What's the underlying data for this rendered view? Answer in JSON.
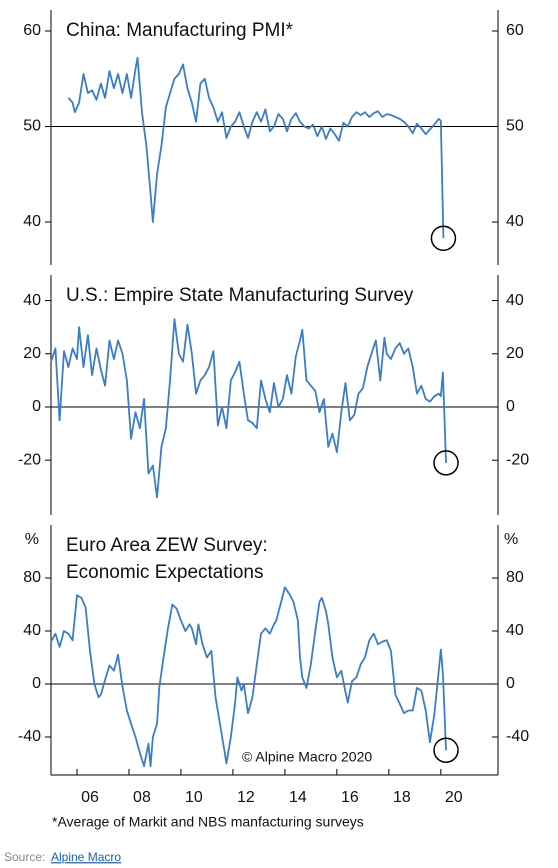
{
  "chart_data": [
    {
      "type": "line",
      "title": "China: Manufacturing PMI*",
      "color": "#3a7dc9",
      "xlim": [
        2005,
        2022.2
      ],
      "ylim": [
        35.5,
        62.2
      ],
      "yticks": [
        40,
        50,
        60
      ],
      "hline": 50,
      "x": [
        2005.67,
        2005.83,
        2005.92,
        2006.08,
        2006.25,
        2006.42,
        2006.58,
        2006.75,
        2006.92,
        2007.08,
        2007.25,
        2007.42,
        2007.58,
        2007.75,
        2007.92,
        2008.08,
        2008.25,
        2008.33,
        2008.5,
        2008.67,
        2008.83,
        2008.92,
        2009.08,
        2009.25,
        2009.42,
        2009.58,
        2009.75,
        2009.92,
        2010.08,
        2010.25,
        2010.42,
        2010.58,
        2010.75,
        2010.92,
        2011.08,
        2011.25,
        2011.42,
        2011.58,
        2011.75,
        2011.92,
        2012.08,
        2012.25,
        2012.42,
        2012.58,
        2012.75,
        2012.92,
        2013.08,
        2013.25,
        2013.42,
        2013.58,
        2013.75,
        2013.92,
        2014.08,
        2014.25,
        2014.42,
        2014.58,
        2014.75,
        2014.92,
        2015.08,
        2015.25,
        2015.42,
        2015.58,
        2015.75,
        2015.92,
        2016.08,
        2016.25,
        2016.42,
        2016.58,
        2016.75,
        2016.92,
        2017.08,
        2017.25,
        2017.42,
        2017.58,
        2017.75,
        2017.92,
        2018.08,
        2018.25,
        2018.42,
        2018.58,
        2018.75,
        2018.92,
        2019.08,
        2019.25,
        2019.42,
        2019.58,
        2019.75,
        2019.92,
        2020.0,
        2020.1
      ],
      "series": [
        {
          "values": [
            53,
            52.5,
            51.5,
            52.5,
            55.5,
            53.5,
            53.8,
            52.8,
            54.5,
            53.0,
            55.8,
            54.0,
            55.5,
            53.5,
            55.5,
            53.0,
            56.0,
            57.2,
            51.5,
            48.0,
            43.0,
            40.0,
            45,
            48,
            52,
            53.5,
            55,
            55.5,
            56.5,
            54,
            52.5,
            50.5,
            54.5,
            55,
            53,
            52,
            50.5,
            51.5,
            48.8,
            50,
            50.5,
            51.5,
            50,
            48.8,
            50.5,
            51.5,
            50.5,
            51.8,
            49.5,
            50,
            51.3,
            50.8,
            49.5,
            50.8,
            51.4,
            50.5,
            50.0,
            49.8,
            50.2,
            49,
            50,
            48.7,
            49.8,
            49.2,
            48.5,
            50.4,
            50,
            51,
            51.5,
            51.2,
            51.5,
            51,
            51.4,
            51.6,
            51,
            51.3,
            51.2,
            51,
            50.8,
            50.5,
            50.0,
            49.3,
            50.3,
            49.8,
            49.2,
            49.7,
            50.2,
            50.8,
            50.6,
            38.3
          ]
        }
      ]
    },
    {
      "type": "line",
      "title": "U.S.: Empire State Manufacturing Survey",
      "color": "#3a7dc9",
      "xlim": [
        2005,
        2022.2
      ],
      "ylim": [
        -40.6,
        49.6
      ],
      "yticks": [
        -20,
        0,
        20,
        40
      ],
      "hline": 0,
      "x": [
        2005.0,
        2005.17,
        2005.33,
        2005.5,
        2005.67,
        2005.83,
        2006.0,
        2006.08,
        2006.25,
        2006.42,
        2006.58,
        2006.75,
        2006.92,
        2007.08,
        2007.25,
        2007.42,
        2007.58,
        2007.75,
        2007.92,
        2008.08,
        2008.25,
        2008.42,
        2008.58,
        2008.75,
        2008.92,
        2009.08,
        2009.25,
        2009.42,
        2009.58,
        2009.75,
        2009.92,
        2010.08,
        2010.25,
        2010.42,
        2010.58,
        2010.75,
        2010.92,
        2011.08,
        2011.25,
        2011.42,
        2011.58,
        2011.75,
        2011.92,
        2012.08,
        2012.25,
        2012.42,
        2012.58,
        2012.75,
        2012.92,
        2013.08,
        2013.25,
        2013.42,
        2013.58,
        2013.75,
        2013.92,
        2014.08,
        2014.25,
        2014.42,
        2014.58,
        2014.67,
        2014.83,
        2015.0,
        2015.17,
        2015.33,
        2015.5,
        2015.67,
        2015.83,
        2016.0,
        2016.17,
        2016.33,
        2016.5,
        2016.67,
        2016.83,
        2017.0,
        2017.17,
        2017.33,
        2017.5,
        2017.67,
        2017.83,
        2017.92,
        2018.08,
        2018.25,
        2018.42,
        2018.58,
        2018.75,
        2018.92,
        2019.08,
        2019.25,
        2019.42,
        2019.58,
        2019.75,
        2019.92,
        2020.0,
        2020.08,
        2020.2
      ],
      "series": [
        {
          "values": [
            17,
            22,
            -5,
            21,
            15,
            22,
            18,
            30,
            15,
            27,
            12,
            22,
            14,
            8,
            25,
            18,
            25,
            20,
            10,
            -12,
            -2,
            -8,
            3,
            -25,
            -22,
            -34,
            -15,
            -8,
            10,
            33,
            20,
            17,
            31,
            20,
            5,
            10,
            12,
            15,
            21,
            -7,
            0,
            -8,
            10,
            13,
            17,
            5,
            -5,
            -6,
            -8,
            10,
            3,
            -2,
            9,
            0,
            3,
            12,
            5,
            19,
            25,
            29,
            10,
            8,
            6,
            -2,
            3,
            -15,
            -10,
            -17,
            -2,
            9,
            -5,
            -3,
            5,
            7,
            15,
            20,
            25,
            10,
            26,
            20,
            18,
            22,
            24,
            20,
            22,
            15,
            5,
            8,
            3,
            2,
            4,
            5,
            4,
            13,
            -21
          ]
        }
      ]
    },
    {
      "type": "line",
      "title": [
        "Euro Area ZEW Survey:",
        "Economic Expectations"
      ],
      "ylabel": "%",
      "annotation": "© Alpine Macro 2020",
      "color": "#3a7dc9",
      "xlim": [
        2005,
        2022.2
      ],
      "ylim": [
        -68.7,
        120
      ],
      "yticks": [
        -40,
        0,
        40,
        80
      ],
      "hline": 0,
      "xticks": [
        {
          "value": 2006,
          "label": "06"
        },
        {
          "value": 2008,
          "label": "08"
        },
        {
          "value": 2010,
          "label": "10"
        },
        {
          "value": 2012,
          "label": "12"
        },
        {
          "value": 2014,
          "label": "14"
        },
        {
          "value": 2016,
          "label": "16"
        },
        {
          "value": 2018,
          "label": "18"
        },
        {
          "value": 2020,
          "label": "20"
        }
      ],
      "x": [
        2005.0,
        2005.17,
        2005.33,
        2005.5,
        2005.67,
        2005.83,
        2006.0,
        2006.17,
        2006.33,
        2006.5,
        2006.67,
        2006.83,
        2006.92,
        2007.08,
        2007.25,
        2007.42,
        2007.58,
        2007.75,
        2007.92,
        2008.08,
        2008.25,
        2008.42,
        2008.58,
        2008.75,
        2008.83,
        2008.92,
        2009.08,
        2009.17,
        2009.33,
        2009.5,
        2009.67,
        2009.83,
        2010.0,
        2010.17,
        2010.33,
        2010.42,
        2010.58,
        2010.67,
        2010.83,
        2011.0,
        2011.17,
        2011.33,
        2011.5,
        2011.67,
        2011.75,
        2011.92,
        2012.08,
        2012.17,
        2012.33,
        2012.42,
        2012.58,
        2012.75,
        2012.92,
        2013.08,
        2013.25,
        2013.42,
        2013.58,
        2013.67,
        2013.83,
        2014.0,
        2014.17,
        2014.33,
        2014.5,
        2014.58,
        2014.67,
        2014.83,
        2015.0,
        2015.17,
        2015.33,
        2015.42,
        2015.58,
        2015.67,
        2015.83,
        2016.0,
        2016.17,
        2016.33,
        2016.42,
        2016.58,
        2016.75,
        2016.92,
        2017.08,
        2017.25,
        2017.42,
        2017.58,
        2017.75,
        2017.92,
        2018.08,
        2018.25,
        2018.42,
        2018.58,
        2018.75,
        2018.92,
        2019.08,
        2019.25,
        2019.42,
        2019.58,
        2019.75,
        2019.92,
        2020.0,
        2020.08,
        2020.2
      ],
      "series": [
        {
          "values": [
            32,
            38,
            28,
            40,
            38,
            33,
            67,
            65,
            58,
            25,
            0,
            -10,
            -8,
            3,
            14,
            10,
            22,
            -2,
            -20,
            -30,
            -40,
            -52,
            -62,
            -45,
            -62,
            -40,
            -30,
            -2,
            20,
            42,
            60,
            57,
            48,
            40,
            45,
            42,
            30,
            45,
            30,
            20,
            25,
            -10,
            -30,
            -50,
            -60,
            -40,
            -15,
            5,
            -5,
            0,
            -22,
            -10,
            15,
            38,
            42,
            38,
            45,
            48,
            60,
            73,
            68,
            62,
            48,
            20,
            5,
            -3,
            15,
            40,
            62,
            65,
            55,
            45,
            20,
            5,
            10,
            -6,
            -14,
            2,
            5,
            15,
            20,
            33,
            38,
            30,
            32,
            33,
            25,
            -8,
            -15,
            -22,
            -20,
            -20,
            -3,
            -5,
            -20,
            -44,
            -23,
            10,
            26,
            8,
            -50
          ]
        }
      ]
    }
  ],
  "footnote": "*Average of Markit and NBS manfacturing surveys",
  "source": {
    "label": "Source:",
    "link": "Alpine Macro"
  }
}
